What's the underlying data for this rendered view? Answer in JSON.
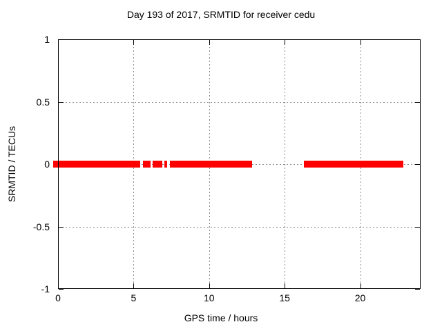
{
  "window": {
    "background": "#ffffff"
  },
  "chart_data": {
    "type": "scatter",
    "title": "Day 193 of 2017, SRMTID for receiver cedu",
    "xlabel": "GPS time / hours",
    "ylabel": "SRMTID / TECUs",
    "xlim": [
      0,
      24
    ],
    "ylim": [
      -1,
      1
    ],
    "grid": true,
    "legend": "none",
    "axis_color": "#000000",
    "grid_color": "#8c8c8c",
    "text_color": "#000000",
    "background_color": "#ffffff",
    "xticks": [
      {
        "v": 0,
        "label": "0"
      },
      {
        "v": 5,
        "label": "5"
      },
      {
        "v": 10,
        "label": "10"
      },
      {
        "v": 15,
        "label": "15"
      },
      {
        "v": 20,
        "label": "20"
      }
    ],
    "yticks": [
      {
        "v": 1,
        "label": "1"
      },
      {
        "v": 0.5,
        "label": "0.5"
      },
      {
        "v": 0,
        "label": "0"
      },
      {
        "v": -0.5,
        "label": "-0.5"
      },
      {
        "v": -1,
        "label": "-1"
      }
    ],
    "x_gridlines": [
      5,
      10,
      15,
      20
    ],
    "y_gridlines": [
      0.5,
      0,
      -0.5
    ],
    "series": [
      {
        "name": "SRMTID",
        "color": "#ff0000",
        "marker": "point",
        "y_center": 0.0,
        "y_spread": 0.025,
        "segments_hours": [
          [
            0,
            5.44
          ],
          [
            5.62,
            6.13
          ],
          [
            6.26,
            6.9
          ],
          [
            7.04,
            7.22
          ],
          [
            7.41,
            12.85
          ],
          [
            16.28,
            22.86
          ]
        ]
      }
    ]
  }
}
